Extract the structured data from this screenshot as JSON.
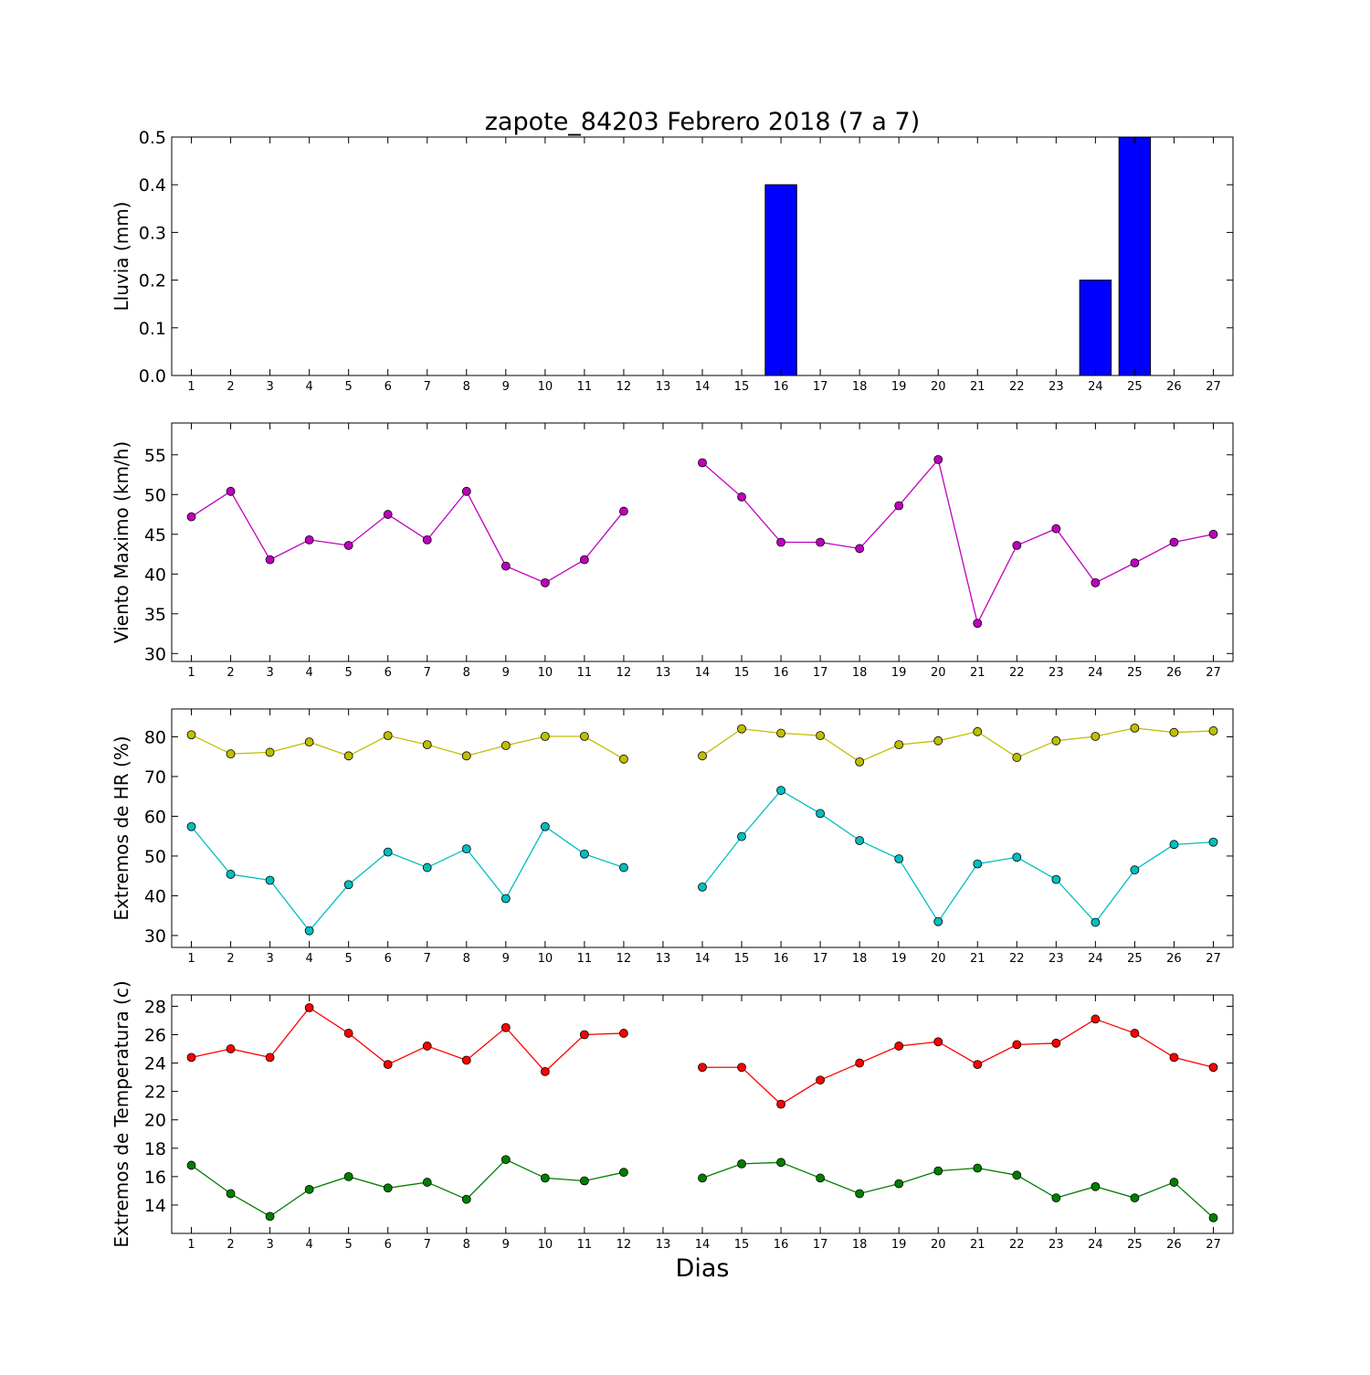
{
  "title": "zapote_84203 Febrero 2018  (7 a 7)",
  "xlabel": "Dias",
  "chart_data": [
    {
      "type": "bar",
      "ylabel": "Lluvia (mm)",
      "ylim": [
        0,
        0.5
      ],
      "yticks": [
        0.0,
        0.1,
        0.2,
        0.3,
        0.4,
        0.5
      ],
      "ytick_labels": [
        "0.0",
        "0.1",
        "0.2",
        "0.3",
        "0.4",
        "0.5"
      ],
      "x": [
        1,
        2,
        3,
        4,
        5,
        6,
        7,
        8,
        9,
        10,
        11,
        12,
        13,
        14,
        15,
        16,
        17,
        18,
        19,
        20,
        21,
        22,
        23,
        24,
        25,
        26,
        27
      ],
      "xlim": [
        0.5,
        27.5
      ],
      "values": [
        0,
        0,
        0,
        0,
        0,
        0,
        0,
        0,
        0,
        0,
        0,
        0,
        null,
        0,
        0,
        0.4,
        0,
        0,
        0,
        0,
        0,
        0,
        0,
        0.2,
        0.5,
        0,
        0
      ],
      "color": "#0000ff"
    },
    {
      "type": "line",
      "ylabel": "Viento Maximo (km/h)",
      "ylim": [
        29,
        59
      ],
      "yticks": [
        30,
        35,
        40,
        45,
        50,
        55
      ],
      "ytick_labels": [
        "30",
        "35",
        "40",
        "45",
        "50",
        "55"
      ],
      "x": [
        1,
        2,
        3,
        4,
        5,
        6,
        7,
        8,
        9,
        10,
        11,
        12,
        13,
        14,
        15,
        16,
        17,
        18,
        19,
        20,
        21,
        22,
        23,
        24,
        25,
        26,
        27
      ],
      "xlim": [
        0.5,
        27.5
      ],
      "series": [
        {
          "color": "#bf00bf",
          "values": [
            47.2,
            50.4,
            41.8,
            44.3,
            43.6,
            47.5,
            44.3,
            50.4,
            41.0,
            38.9,
            41.8,
            47.9,
            null,
            54.0,
            49.7,
            44.0,
            44.0,
            43.2,
            48.6,
            54.4,
            33.8,
            43.6,
            45.7,
            38.9,
            41.4,
            44.0,
            45.0
          ]
        }
      ]
    },
    {
      "type": "line",
      "ylabel": "Extremos de HR (%)",
      "ylim": [
        27,
        87
      ],
      "yticks": [
        30,
        40,
        50,
        60,
        70,
        80
      ],
      "ytick_labels": [
        "30",
        "40",
        "50",
        "60",
        "70",
        "80"
      ],
      "x": [
        1,
        2,
        3,
        4,
        5,
        6,
        7,
        8,
        9,
        10,
        11,
        12,
        13,
        14,
        15,
        16,
        17,
        18,
        19,
        20,
        21,
        22,
        23,
        24,
        25,
        26,
        27
      ],
      "xlim": [
        0.5,
        27.5
      ],
      "series": [
        {
          "color": "#bfbf00",
          "values": [
            80.5,
            75.7,
            76.1,
            78.7,
            75.2,
            80.3,
            78.0,
            75.2,
            77.8,
            80.1,
            80.1,
            74.4,
            null,
            75.2,
            82.0,
            80.9,
            80.3,
            73.7,
            78.0,
            79.0,
            81.3,
            74.8,
            79.0,
            80.1,
            82.2,
            81.1,
            81.5
          ]
        },
        {
          "color": "#00bfbf",
          "values": [
            57.4,
            45.4,
            43.9,
            31.2,
            42.8,
            51.0,
            47.1,
            51.8,
            39.3,
            57.4,
            50.5,
            47.1,
            null,
            42.2,
            54.9,
            66.5,
            60.7,
            53.9,
            49.3,
            33.5,
            48.0,
            49.7,
            44.1,
            33.3,
            46.5,
            52.9,
            53.5
          ]
        }
      ]
    },
    {
      "type": "line",
      "ylabel": "Extremos de Temperatura (c)",
      "ylim": [
        12,
        28.8
      ],
      "yticks": [
        14,
        16,
        18,
        20,
        22,
        24,
        26,
        28
      ],
      "ytick_labels": [
        "14",
        "16",
        "18",
        "20",
        "22",
        "24",
        "26",
        "28"
      ],
      "x": [
        1,
        2,
        3,
        4,
        5,
        6,
        7,
        8,
        9,
        10,
        11,
        12,
        13,
        14,
        15,
        16,
        17,
        18,
        19,
        20,
        21,
        22,
        23,
        24,
        25,
        26,
        27
      ],
      "xlim": [
        0.5,
        27.5
      ],
      "series": [
        {
          "color": "#ff0000",
          "values": [
            24.4,
            25.0,
            24.4,
            27.9,
            26.1,
            23.9,
            25.2,
            24.2,
            26.5,
            23.4,
            26.0,
            26.1,
            null,
            23.7,
            23.7,
            21.1,
            22.8,
            24.0,
            25.2,
            25.5,
            23.9,
            25.3,
            25.4,
            27.1,
            26.1,
            24.4,
            23.7
          ]
        },
        {
          "color": "#007f00",
          "values": [
            16.8,
            14.8,
            13.2,
            15.1,
            16.0,
            15.2,
            15.6,
            14.4,
            17.2,
            15.9,
            15.7,
            16.3,
            null,
            15.9,
            16.9,
            17.0,
            15.9,
            14.8,
            15.5,
            16.4,
            16.6,
            16.1,
            14.5,
            15.3,
            14.5,
            15.6,
            13.1
          ]
        }
      ]
    }
  ]
}
